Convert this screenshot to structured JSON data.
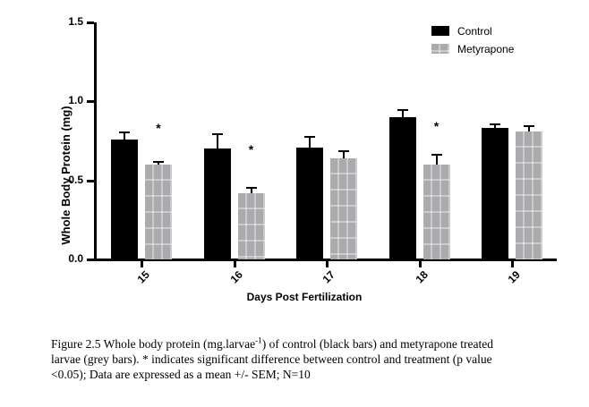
{
  "chart_data": {
    "type": "bar",
    "title": "",
    "xlabel": "Days Post Fertilization",
    "ylabel": "Whole Body Protein (mg)",
    "categories": [
      "15",
      "16",
      "17",
      "18",
      "19"
    ],
    "ylim": [
      0,
      1.5
    ],
    "yticks": [
      0.0,
      0.5,
      1.0,
      1.5
    ],
    "ytick_labels": [
      "0.0",
      "0.5",
      "1.0",
      "1.5"
    ],
    "grid": false,
    "legend_position": "top-right",
    "bar_colors": {
      "control": "#000000",
      "metyrapone": "#ababae"
    },
    "series": [
      {
        "name": "Control",
        "color": "#000000",
        "values": [
          0.76,
          0.7,
          0.71,
          0.9,
          0.83
        ],
        "sem": [
          0.05,
          0.1,
          0.07,
          0.05,
          0.03
        ]
      },
      {
        "name": "Metyrapone",
        "color": "#ababae",
        "values": [
          0.6,
          0.42,
          0.64,
          0.6,
          0.81
        ],
        "sem": [
          0.02,
          0.04,
          0.05,
          0.07,
          0.04
        ]
      }
    ],
    "sig_marker": "*",
    "significance": [
      {
        "category": "15",
        "series": "Metyrapone",
        "y": 0.84
      },
      {
        "category": "16",
        "series": "Metyrapone",
        "y": 0.7
      },
      {
        "category": "18",
        "series": "Metyrapone",
        "y": 0.85
      }
    ]
  },
  "legend": {
    "items": [
      {
        "label": "Control",
        "color": "#000000"
      },
      {
        "label": "Metyrapone",
        "color": "#ababae"
      }
    ]
  },
  "caption": {
    "lines": [
      [
        {
          "t": "Figure 2.5 Whole body protein (mg.larvae"
        },
        {
          "t": "-1",
          "sup": true
        },
        {
          "t": ") of control (black bars) and metyrapone treated"
        }
      ],
      [
        {
          "t": "larvae (grey bars). * indicates significant difference between control and treatment (p value"
        }
      ],
      [
        {
          "t": "<0.05); Data are expressed as a mean +/- SEM; N=10"
        }
      ]
    ]
  }
}
